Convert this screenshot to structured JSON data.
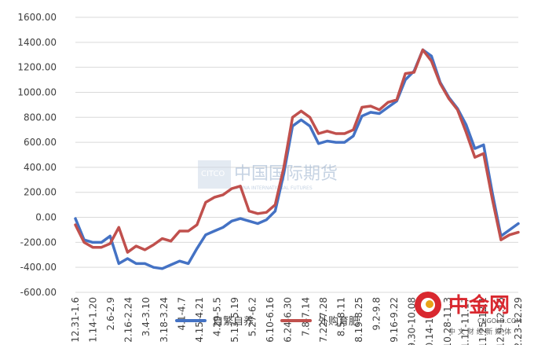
{
  "chart_data": {
    "type": "line",
    "title": "",
    "xlabel": "",
    "ylabel": "",
    "ylim": [
      -600,
      1600
    ],
    "yticks": [
      "1600.00",
      "1400.00",
      "1200.00",
      "1000.00",
      "800.00",
      "600.00",
      "400.00",
      "200.00",
      "0.00",
      "-200.00",
      "-400.00",
      "-600.00"
    ],
    "tick_labels": [
      "12.31-1.6",
      "1.14-1.20",
      "2.6-2.9",
      "2.16-2.24",
      "3.4-3.10",
      "3.18-3.24",
      "4.1-4.7",
      "4.15-4.21",
      "4.29-5.5",
      "5.13-5.19",
      "5.27-6.2",
      "6.10-6.16",
      "6.24-6.30",
      "7.8-7.14",
      "7.22-7.28",
      "8.5-8.11",
      "8.19-8.25",
      "9.2-9.8",
      "9.16-9.22",
      "9.30-10.08",
      "10.14-10.20",
      "10.28-11.3",
      "11.11-11.17",
      "11.25-12.1",
      "12.9-12.15",
      "12.23-12.29"
    ],
    "grid": true,
    "legend_position": "bottom",
    "series": [
      {
        "name": "自繁自养",
        "color": "#4472C4",
        "values": [
          -10,
          -180,
          -200,
          -200,
          -150,
          -370,
          -330,
          -370,
          -370,
          -400,
          -410,
          -380,
          -350,
          -370,
          -250,
          -140,
          -110,
          -80,
          -30,
          -10,
          -30,
          -50,
          -20,
          50,
          350,
          730,
          780,
          730,
          590,
          610,
          600,
          600,
          650,
          810,
          840,
          830,
          880,
          930,
          1100,
          1170,
          1340,
          1290,
          1080,
          960,
          870,
          740,
          550,
          580,
          200,
          -150,
          -100,
          -50
        ],
        "dash": false
      },
      {
        "name": "外购育肥",
        "color": "#C0504D",
        "values": [
          -60,
          -200,
          -240,
          -240,
          -210,
          -80,
          -280,
          -230,
          -260,
          -220,
          -170,
          -190,
          -110,
          -110,
          -60,
          120,
          160,
          180,
          230,
          250,
          50,
          30,
          40,
          100,
          400,
          800,
          850,
          800,
          670,
          690,
          670,
          670,
          700,
          880,
          890,
          860,
          920,
          940,
          1150,
          1160,
          1340,
          1250,
          1070,
          950,
          860,
          680,
          480,
          510,
          150,
          -180,
          -140,
          -120
        ]
      }
    ]
  },
  "legend": {
    "items": [
      {
        "label": "自繁自养",
        "color": "#4472C4"
      },
      {
        "label": "外购育肥",
        "color": "#C0504D"
      }
    ]
  },
  "watermark": {
    "citco_text": "CITCO",
    "cn_text": "中国国际期货",
    "en_text": "CHINA INTERNATIONAL FUTURES"
  },
  "logo": {
    "cn_text": "中金网",
    "url_text": "CNGOLD.COM",
    "tagline": "中 文 财 经 新 媒 体",
    "brand_color": "#D9282F"
  }
}
